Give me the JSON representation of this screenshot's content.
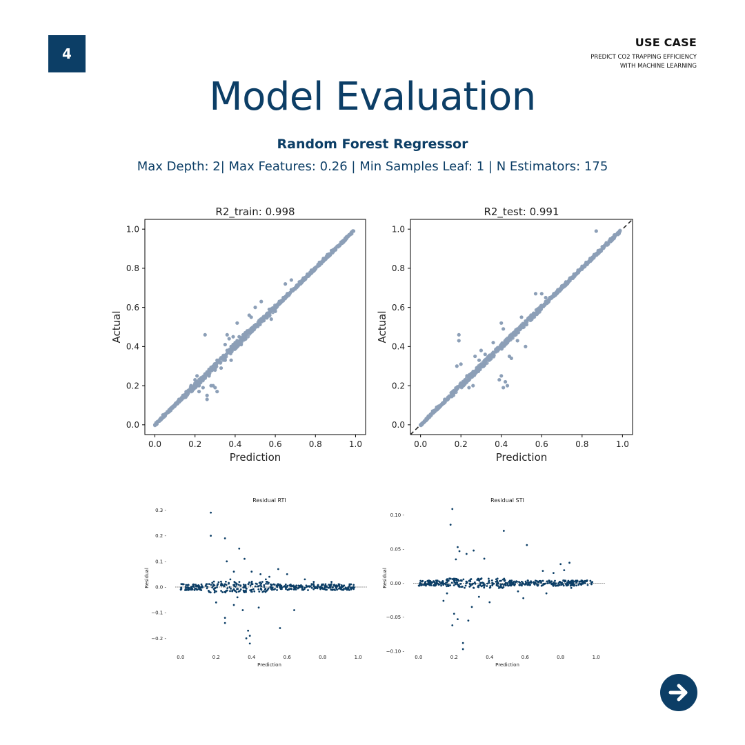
{
  "header": {
    "page_number": "4",
    "use_case_title": "USE CASE",
    "use_case_line1": "PREDICT CO2 TRAPPING EFFICIENCY",
    "use_case_line2": "WITH MACHINE LEARNING"
  },
  "title": "Model Evaluation",
  "model_name": "Random Forest Regressor",
  "params": "Max Depth: 2| Max Features: 0.26 | Min Samples Leaf: 1 | N Estimators: 175",
  "colors": {
    "accent": "#0c3e66",
    "scatter_points": "#8c9fb7",
    "residual_points": "#0c3e66"
  },
  "icons": {
    "next": "arrow-right-icon"
  },
  "chart_data": [
    {
      "id": "train",
      "type": "scatter",
      "title": "R2_train: 0.998",
      "xlabel": "Prediction",
      "ylabel": "Actual",
      "xlim": [
        -0.05,
        1.05
      ],
      "ylim": [
        -0.05,
        1.05
      ],
      "xticks": [
        "0.0",
        "0.2",
        "0.4",
        "0.6",
        "0.8",
        "1.0"
      ],
      "yticks": [
        "0.0",
        "0.2",
        "0.4",
        "0.6",
        "0.8",
        "1.0"
      ],
      "reference_line": false,
      "points": [
        [
          0.0,
          0.0
        ],
        [
          0.02,
          0.02
        ],
        [
          0.04,
          0.05
        ],
        [
          0.06,
          0.06
        ],
        [
          0.08,
          0.08
        ],
        [
          0.1,
          0.1
        ],
        [
          0.12,
          0.13
        ],
        [
          0.14,
          0.15
        ],
        [
          0.16,
          0.16
        ],
        [
          0.18,
          0.19
        ],
        [
          0.2,
          0.2
        ],
        [
          0.21,
          0.22
        ],
        [
          0.22,
          0.2
        ],
        [
          0.23,
          0.24
        ],
        [
          0.24,
          0.23
        ],
        [
          0.25,
          0.26
        ],
        [
          0.26,
          0.27
        ],
        [
          0.27,
          0.25
        ],
        [
          0.28,
          0.29
        ],
        [
          0.29,
          0.3
        ],
        [
          0.3,
          0.28
        ],
        [
          0.3,
          0.31
        ],
        [
          0.31,
          0.33
        ],
        [
          0.32,
          0.32
        ],
        [
          0.33,
          0.34
        ],
        [
          0.34,
          0.35
        ],
        [
          0.35,
          0.33
        ],
        [
          0.36,
          0.38
        ],
        [
          0.37,
          0.37
        ],
        [
          0.38,
          0.4
        ],
        [
          0.39,
          0.41
        ],
        [
          0.4,
          0.42
        ],
        [
          0.41,
          0.43
        ],
        [
          0.42,
          0.45
        ],
        [
          0.43,
          0.44
        ],
        [
          0.44,
          0.46
        ],
        [
          0.45,
          0.47
        ],
        [
          0.46,
          0.48
        ],
        [
          0.48,
          0.49
        ],
        [
          0.5,
          0.51
        ],
        [
          0.52,
          0.53
        ],
        [
          0.54,
          0.55
        ],
        [
          0.56,
          0.57
        ],
        [
          0.58,
          0.59
        ],
        [
          0.6,
          0.6
        ],
        [
          0.62,
          0.63
        ],
        [
          0.64,
          0.65
        ],
        [
          0.66,
          0.67
        ],
        [
          0.68,
          0.69
        ],
        [
          0.7,
          0.7
        ],
        [
          0.72,
          0.73
        ],
        [
          0.74,
          0.75
        ],
        [
          0.76,
          0.77
        ],
        [
          0.78,
          0.79
        ],
        [
          0.8,
          0.8
        ],
        [
          0.82,
          0.83
        ],
        [
          0.84,
          0.85
        ],
        [
          0.86,
          0.87
        ],
        [
          0.88,
          0.89
        ],
        [
          0.9,
          0.9
        ],
        [
          0.92,
          0.92
        ],
        [
          0.94,
          0.94
        ],
        [
          0.96,
          0.96
        ],
        [
          0.98,
          0.98
        ],
        [
          0.99,
          0.99
        ],
        [
          0.25,
          0.46
        ],
        [
          0.28,
          0.2
        ],
        [
          0.26,
          0.15
        ],
        [
          0.29,
          0.2
        ],
        [
          0.3,
          0.19
        ],
        [
          0.26,
          0.13
        ],
        [
          0.31,
          0.17
        ],
        [
          0.36,
          0.46
        ],
        [
          0.37,
          0.44
        ],
        [
          0.39,
          0.45
        ],
        [
          0.41,
          0.52
        ],
        [
          0.47,
          0.56
        ],
        [
          0.48,
          0.55
        ],
        [
          0.5,
          0.6
        ],
        [
          0.53,
          0.63
        ],
        [
          0.57,
          0.59
        ],
        [
          0.58,
          0.54
        ],
        [
          0.6,
          0.58
        ],
        [
          0.65,
          0.72
        ],
        [
          0.68,
          0.74
        ],
        [
          0.24,
          0.19
        ],
        [
          0.22,
          0.17
        ],
        [
          0.2,
          0.23
        ],
        [
          0.33,
          0.29
        ],
        [
          0.35,
          0.41
        ],
        [
          0.43,
          0.41
        ],
        [
          0.38,
          0.33
        ],
        [
          0.16,
          0.17
        ],
        [
          0.18,
          0.2
        ],
        [
          0.21,
          0.25
        ]
      ]
    },
    {
      "id": "test",
      "type": "scatter",
      "title": "R2_test: 0.991",
      "xlabel": "Prediction",
      "ylabel": "Actual",
      "xlim": [
        -0.05,
        1.05
      ],
      "ylim": [
        -0.05,
        1.05
      ],
      "xticks": [
        "0.0",
        "0.2",
        "0.4",
        "0.6",
        "0.8",
        "1.0"
      ],
      "yticks": [
        "0.0",
        "0.2",
        "0.4",
        "0.6",
        "0.8",
        "1.0"
      ],
      "reference_line": true,
      "points": [
        [
          0.0,
          0.0
        ],
        [
          0.03,
          0.03
        ],
        [
          0.06,
          0.07
        ],
        [
          0.08,
          0.09
        ],
        [
          0.1,
          0.1
        ],
        [
          0.12,
          0.13
        ],
        [
          0.14,
          0.14
        ],
        [
          0.16,
          0.17
        ],
        [
          0.18,
          0.19
        ],
        [
          0.2,
          0.21
        ],
        [
          0.22,
          0.23
        ],
        [
          0.24,
          0.25
        ],
        [
          0.26,
          0.27
        ],
        [
          0.28,
          0.29
        ],
        [
          0.3,
          0.31
        ],
        [
          0.32,
          0.33
        ],
        [
          0.34,
          0.35
        ],
        [
          0.36,
          0.37
        ],
        [
          0.38,
          0.39
        ],
        [
          0.4,
          0.41
        ],
        [
          0.42,
          0.43
        ],
        [
          0.44,
          0.45
        ],
        [
          0.46,
          0.47
        ],
        [
          0.48,
          0.49
        ],
        [
          0.5,
          0.51
        ],
        [
          0.52,
          0.53
        ],
        [
          0.54,
          0.55
        ],
        [
          0.56,
          0.57
        ],
        [
          0.58,
          0.59
        ],
        [
          0.6,
          0.61
        ],
        [
          0.62,
          0.63
        ],
        [
          0.64,
          0.65
        ],
        [
          0.66,
          0.67
        ],
        [
          0.68,
          0.69
        ],
        [
          0.7,
          0.71
        ],
        [
          0.72,
          0.73
        ],
        [
          0.74,
          0.75
        ],
        [
          0.76,
          0.77
        ],
        [
          0.78,
          0.79
        ],
        [
          0.8,
          0.81
        ],
        [
          0.82,
          0.83
        ],
        [
          0.84,
          0.85
        ],
        [
          0.86,
          0.87
        ],
        [
          0.88,
          0.89
        ],
        [
          0.9,
          0.91
        ],
        [
          0.92,
          0.93
        ],
        [
          0.94,
          0.95
        ],
        [
          0.96,
          0.97
        ],
        [
          0.19,
          0.46
        ],
        [
          0.19,
          0.43
        ],
        [
          0.18,
          0.3
        ],
        [
          0.2,
          0.31
        ],
        [
          0.23,
          0.25
        ],
        [
          0.24,
          0.19
        ],
        [
          0.27,
          0.35
        ],
        [
          0.3,
          0.38
        ],
        [
          0.32,
          0.36
        ],
        [
          0.4,
          0.52
        ],
        [
          0.41,
          0.49
        ],
        [
          0.42,
          0.22
        ],
        [
          0.41,
          0.19
        ],
        [
          0.43,
          0.2
        ],
        [
          0.39,
          0.23
        ],
        [
          0.4,
          0.25
        ],
        [
          0.44,
          0.35
        ],
        [
          0.45,
          0.34
        ],
        [
          0.48,
          0.43
        ],
        [
          0.52,
          0.4
        ],
        [
          0.57,
          0.67
        ],
        [
          0.6,
          0.67
        ],
        [
          0.62,
          0.65
        ],
        [
          0.5,
          0.55
        ],
        [
          0.36,
          0.42
        ],
        [
          0.87,
          0.99
        ],
        [
          0.26,
          0.2
        ],
        [
          0.29,
          0.33
        ]
      ]
    },
    {
      "id": "rti",
      "type": "scatter",
      "title": "Residual RTI",
      "xlabel": "Prediction",
      "ylabel": "Residual",
      "xlim": [
        -0.05,
        1.05
      ],
      "ylim": [
        -0.25,
        0.32
      ],
      "xticks": [
        "0.0",
        "0.2",
        "0.4",
        "0.6",
        "0.8",
        "1.0"
      ],
      "xtick_values": [
        0.0,
        0.2,
        0.4,
        0.6,
        0.8,
        1.0
      ],
      "yticks": [
        "−0.2",
        "−0.1",
        "0.0",
        "0.1",
        "0.2",
        "0.3"
      ],
      "ytick_values": [
        -0.2,
        -0.1,
        0.0,
        0.1,
        0.2,
        0.3
      ],
      "zero_line": true,
      "points": [
        [
          0.17,
          0.29
        ],
        [
          0.17,
          0.2
        ],
        [
          0.25,
          0.19
        ],
        [
          0.26,
          0.1
        ],
        [
          0.33,
          0.15
        ],
        [
          0.36,
          0.11
        ],
        [
          0.38,
          -0.17
        ],
        [
          0.39,
          -0.19
        ],
        [
          0.37,
          -0.2
        ],
        [
          0.39,
          -0.22
        ],
        [
          0.56,
          -0.16
        ],
        [
          0.25,
          -0.14
        ],
        [
          0.25,
          -0.12
        ],
        [
          0.3,
          0.06
        ],
        [
          0.4,
          0.06
        ],
        [
          0.45,
          0.05
        ],
        [
          0.5,
          0.04
        ],
        [
          0.55,
          0.07
        ],
        [
          0.6,
          0.05
        ],
        [
          0.64,
          -0.09
        ],
        [
          0.44,
          -0.08
        ],
        [
          0.35,
          -0.09
        ],
        [
          0.3,
          -0.07
        ],
        [
          0.2,
          -0.06
        ],
        [
          0.48,
          0.03
        ],
        [
          0.7,
          0.03
        ],
        [
          0.85,
          0.02
        ],
        [
          0.75,
          0.02
        ],
        [
          0.28,
          0.03
        ],
        [
          0.32,
          -0.04
        ]
      ],
      "band": {
        "x": [
          0.0,
          0.98
        ],
        "spread": 0.012,
        "count": 420
      }
    },
    {
      "id": "sti",
      "type": "scatter",
      "title": "Residual STI",
      "xlabel": "Prediction",
      "ylabel": "Residual",
      "xlim": [
        -0.05,
        1.05
      ],
      "ylim": [
        -0.1,
        0.115
      ],
      "xticks": [
        "0.0",
        "0.2",
        "0.4",
        "0.6",
        "0.8",
        "1.0"
      ],
      "xtick_values": [
        0.0,
        0.2,
        0.4,
        0.6,
        0.8,
        1.0
      ],
      "yticks": [
        "−0.10",
        "−0.05",
        "0.00",
        "0.05",
        "0.10"
      ],
      "ytick_values": [
        -0.1,
        -0.05,
        0.0,
        0.05,
        0.1
      ],
      "zero_line": true,
      "points": [
        [
          0.19,
          0.109
        ],
        [
          0.18,
          0.086
        ],
        [
          0.48,
          0.077
        ],
        [
          0.61,
          0.056
        ],
        [
          0.22,
          0.053
        ],
        [
          0.23,
          0.047
        ],
        [
          0.31,
          0.048
        ],
        [
          0.27,
          0.043
        ],
        [
          0.21,
          0.035
        ],
        [
          0.37,
          0.036
        ],
        [
          0.7,
          0.018
        ],
        [
          0.76,
          0.015
        ],
        [
          0.8,
          0.028
        ],
        [
          0.82,
          0.019
        ],
        [
          0.85,
          0.03
        ],
        [
          0.86,
          -0.007
        ],
        [
          0.25,
          -0.088
        ],
        [
          0.25,
          -0.097
        ],
        [
          0.19,
          -0.062
        ],
        [
          0.2,
          -0.045
        ],
        [
          0.28,
          -0.055
        ],
        [
          0.3,
          -0.035
        ],
        [
          0.4,
          -0.028
        ],
        [
          0.59,
          -0.022
        ],
        [
          0.56,
          -0.012
        ],
        [
          0.14,
          -0.026
        ],
        [
          0.16,
          -0.015
        ],
        [
          0.22,
          -0.053
        ],
        [
          0.34,
          -0.02
        ],
        [
          0.72,
          -0.015
        ]
      ],
      "band": {
        "x": [
          0.0,
          0.98
        ],
        "spread": 0.004,
        "count": 420
      }
    }
  ]
}
